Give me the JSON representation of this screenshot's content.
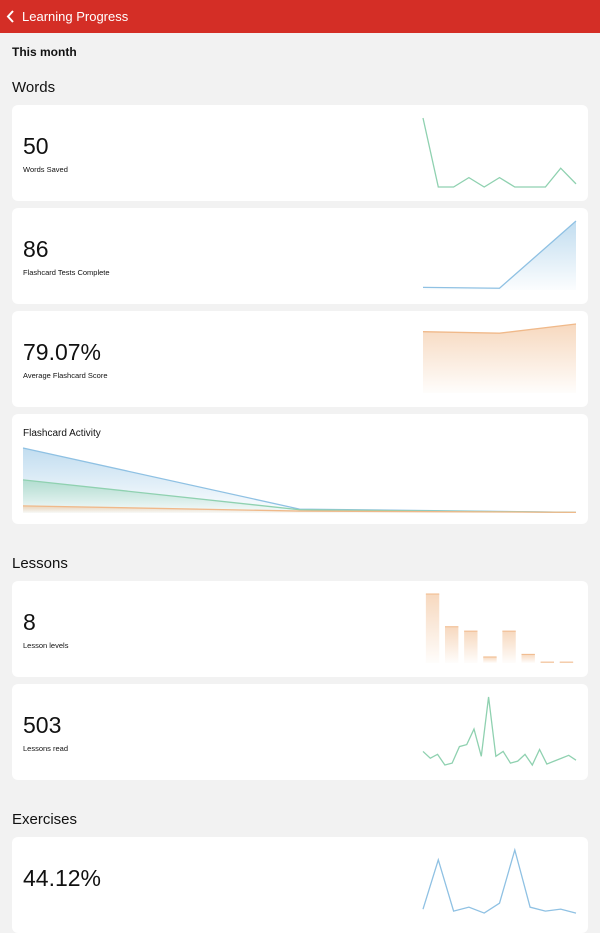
{
  "header": {
    "title": "Learning Progress"
  },
  "period": "This month",
  "sections": [
    {
      "title": "Words",
      "cards": [
        {
          "value": "50",
          "label": "Words Saved",
          "chart": {
            "type": "line",
            "color": "#8fd1b0",
            "values": [
              22,
              0,
              0,
              3,
              0,
              3,
              0,
              0,
              0,
              6,
              1
            ],
            "ylim": [
              0,
              22
            ]
          }
        },
        {
          "value": "86",
          "label": "Flashcard Tests Complete",
          "chart": {
            "type": "area",
            "color": "#8fc1e3",
            "values": [
              3,
              2,
              78
            ],
            "ylim": [
              0,
              78
            ]
          }
        },
        {
          "value": "79.07%",
          "label": "Average Flashcard Score",
          "chart": {
            "type": "area",
            "color": "#f0b98a",
            "values": [
              75,
              74,
              80
            ],
            "ylim": [
              35,
              80
            ]
          }
        },
        {
          "label": "Flashcard Activity",
          "chart": {
            "type": "area",
            "ylim": [
              0,
              100
            ],
            "series": [
              {
                "color": "#8fc1e3",
                "values": [
                  100,
                  6,
                  1
                ]
              },
              {
                "color": "#8fd1b0",
                "values": [
                  51,
                  5,
                  1
                ]
              },
              {
                "color": "#f0b98a",
                "values": [
                  11,
                  3,
                  1
                ]
              }
            ]
          }
        }
      ]
    },
    {
      "title": "Lessons",
      "cards": [
        {
          "value": "8",
          "label": "Lesson levels",
          "chart": {
            "type": "bar",
            "color": "#f0b98a",
            "values": [
              8,
              4.2,
              3.7,
              0.7,
              3.7,
              1,
              0.1,
              0.1
            ],
            "ylim": [
              0,
              8
            ]
          }
        },
        {
          "value": "503",
          "label": "Lessons read",
          "chart": {
            "type": "line",
            "color": "#8fd1b0",
            "values": [
              15,
              8,
              12,
              1,
              3,
              20,
              22,
              38,
              10,
              71,
              10,
              15,
              3,
              5,
              12,
              1,
              17,
              2,
              5,
              8,
              11,
              6
            ],
            "ylim": [
              0,
              71
            ]
          }
        }
      ]
    },
    {
      "title": "Exercises",
      "cards": [
        {
          "value": "44.12%",
          "label": "",
          "chart": {
            "type": "line",
            "color": "#8fc1e3",
            "values": [
              5,
              30,
              4,
              6,
              3,
              8,
              35,
              6,
              4,
              5,
              3
            ],
            "ylim": [
              0,
              35
            ]
          }
        }
      ]
    }
  ]
}
